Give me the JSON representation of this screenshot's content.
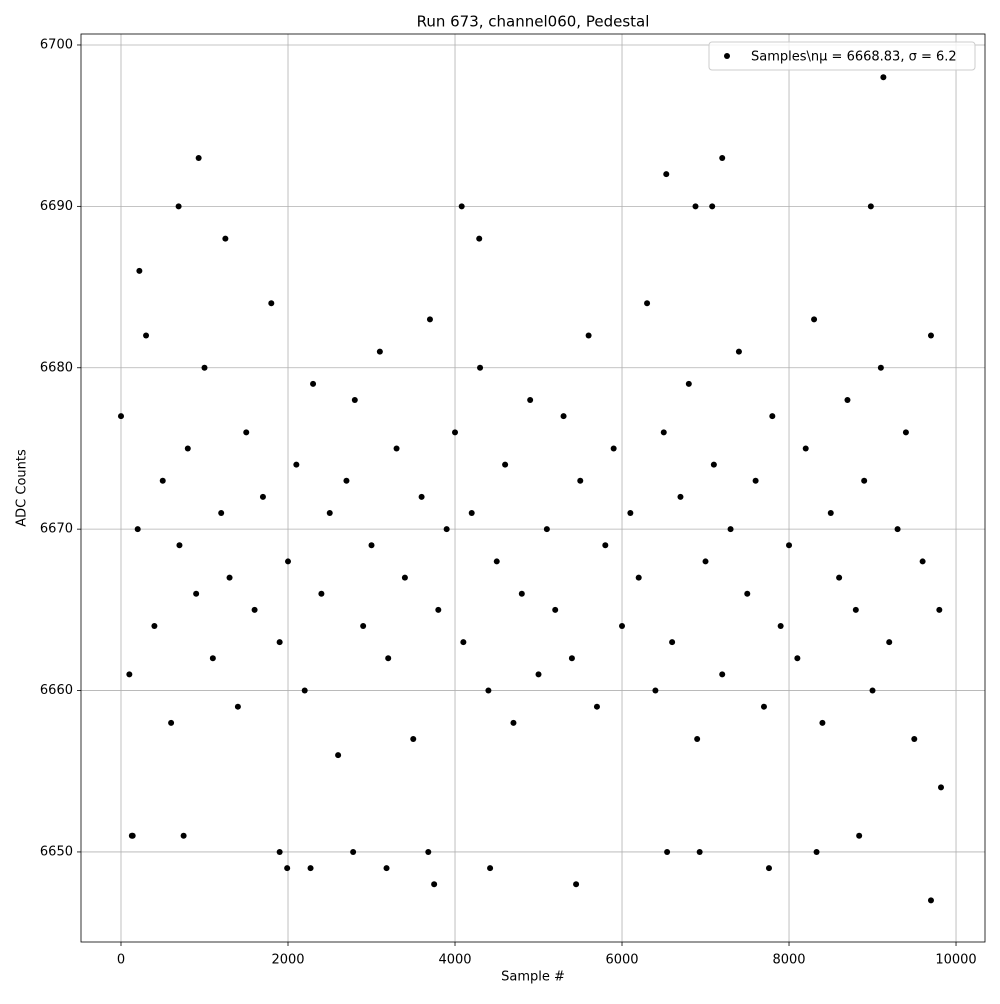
{
  "chart_data": {
    "type": "scatter",
    "title": "Run 673, channel060, Pedestal",
    "x_label": "Sample #",
    "y_label": "ADC Counts",
    "xlim": [
      -479,
      10347
    ],
    "ylim": [
      6644.42,
      6700.68
    ],
    "xticks": [
      0,
      2000,
      4000,
      6000,
      8000,
      10000
    ],
    "yticks": [
      6650,
      6660,
      6670,
      6680,
      6690,
      6700
    ],
    "grid": true,
    "legend_loc": "upper right",
    "series": [
      {
        "name": "Samples\\nμ = 6668.83, σ = 6.2",
        "color": "#000000",
        "x": [
          0,
          100,
          200,
          300,
          400,
          500,
          600,
          700,
          800,
          900,
          1000,
          1100,
          1200,
          1300,
          1400,
          1500,
          1600,
          1700,
          1800,
          1900,
          2000,
          2100,
          2200,
          2300,
          2400,
          2500,
          2600,
          2700,
          2800,
          2900,
          3000,
          3100,
          3200,
          3300,
          3400,
          3500,
          3600,
          3700,
          3800,
          3900,
          4000,
          4100,
          4200,
          4300,
          4400,
          4500,
          4600,
          4700,
          4800,
          4900,
          5000,
          5100,
          5200,
          5300,
          5400,
          5500,
          5600,
          5700,
          5800,
          5900,
          6000,
          6100,
          6200,
          6300,
          6400,
          6500,
          6600,
          6700,
          6800,
          6900,
          7000,
          7100,
          7200,
          7300,
          7400,
          7500,
          7600,
          7700,
          7800,
          7900,
          8000,
          8100,
          8200,
          8300,
          8400,
          8500,
          8600,
          8700,
          8800,
          8900,
          9000,
          9100,
          9200,
          9300,
          9400,
          9500,
          9600,
          9700,
          9800,
          130,
          140,
          220,
          690,
          750,
          930,
          1250,
          1900,
          1990,
          2270,
          2780,
          3180,
          3680,
          3750,
          4080,
          4290,
          4420,
          5450,
          6530,
          6540,
          6880,
          6930,
          7080,
          7200,
          7760,
          8330,
          8840,
          8980,
          9130,
          9700,
          9820
        ],
        "values": [
          6677,
          6661,
          6670,
          6682,
          6664,
          6673,
          6658,
          6669,
          6675,
          6666,
          6680,
          6662,
          6671,
          6667,
          6659,
          6676,
          6665,
          6672,
          6684,
          6663,
          6668,
          6674,
          6660,
          6679,
          6666,
          6671,
          6656,
          6673,
          6678,
          6664,
          6669,
          6681,
          6662,
          6675,
          6667,
          6657,
          6672,
          6683,
          6665,
          6670,
          6676,
          6663,
          6671,
          6680,
          6660,
          6668,
          6674,
          6658,
          6666,
          6678,
          6661,
          6670,
          6665,
          6677,
          6662,
          6673,
          6682,
          6659,
          6669,
          6675,
          6664,
          6671,
          6667,
          6684,
          6660,
          6676,
          6663,
          6672,
          6679,
          6657,
          6668,
          6674,
          6661,
          6670,
          6681,
          6666,
          6673,
          6659,
          6677,
          6664,
          6669,
          6662,
          6675,
          6683,
          6658,
          6671,
          6667,
          6678,
          6665,
          6673,
          6660,
          6680,
          6663,
          6670,
          6676,
          6657,
          6668,
          6682,
          6665,
          6651,
          6651,
          6686,
          6690,
          6651,
          6693,
          6688,
          6650,
          6649,
          6649,
          6650,
          6649,
          6650,
          6648,
          6690,
          6688,
          6649,
          6648,
          6692,
          6650,
          6690,
          6650,
          6690,
          6693,
          6649,
          6650,
          6651,
          6690,
          6698,
          6647,
          6654
        ]
      }
    ]
  }
}
